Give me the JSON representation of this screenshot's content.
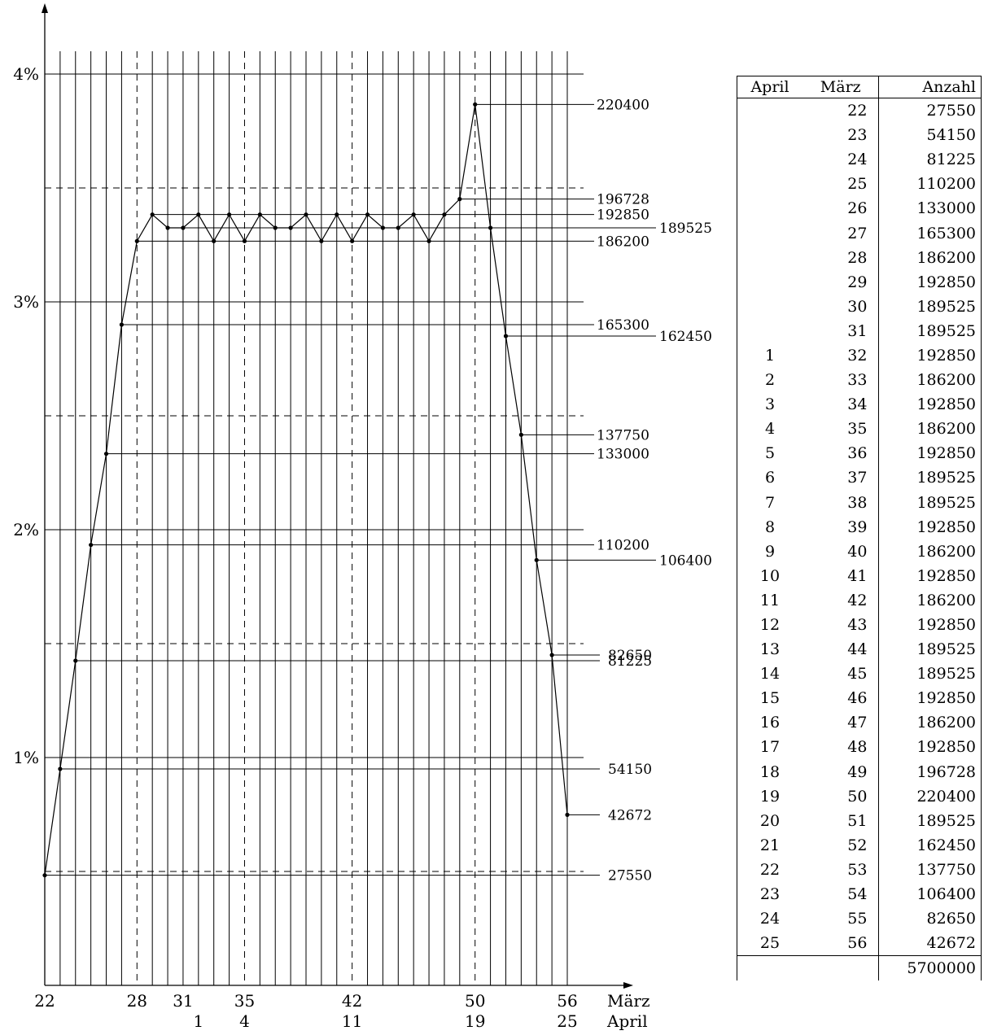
{
  "chart_data": {
    "type": "line",
    "y_axis": {
      "ticks": [
        {
          "value": 1,
          "label": "1%"
        },
        {
          "value": 2,
          "label": "2%"
        },
        {
          "value": 3,
          "label": "3%"
        },
        {
          "value": 4,
          "label": "4%"
        }
      ],
      "ylim": [
        0,
        4.1
      ],
      "dashed_gridlines": [
        0.5,
        1.5,
        2.5,
        3.5
      ]
    },
    "x_axis": {
      "xlim": [
        22,
        56
      ],
      "maerz_label": "März",
      "april_label": "April",
      "maerz_ticks": [
        {
          "value": 22,
          "label": "22"
        },
        {
          "value": 28,
          "label": "28"
        },
        {
          "value": 31,
          "label": "31"
        },
        {
          "value": 35,
          "label": "35"
        },
        {
          "value": 42,
          "label": "42"
        },
        {
          "value": 50,
          "label": "50"
        },
        {
          "value": 56,
          "label": "56"
        }
      ],
      "april_ticks": [
        {
          "value": 32,
          "label": "1"
        },
        {
          "value": 35,
          "label": "4"
        },
        {
          "value": 42,
          "label": "11"
        },
        {
          "value": 50,
          "label": "19"
        },
        {
          "value": 56,
          "label": "25"
        }
      ],
      "dashed_verticals": [
        28,
        35,
        42,
        50
      ]
    },
    "x": [
      22,
      23,
      24,
      25,
      26,
      27,
      28,
      29,
      30,
      31,
      32,
      33,
      34,
      35,
      36,
      37,
      38,
      39,
      40,
      41,
      42,
      43,
      44,
      45,
      46,
      47,
      48,
      49,
      50,
      51,
      52,
      53,
      54,
      55,
      56
    ],
    "values": [
      27550,
      54150,
      81225,
      110200,
      133000,
      165300,
      186200,
      192850,
      189525,
      189525,
      192850,
      186200,
      192850,
      186200,
      192850,
      189525,
      189525,
      192850,
      186200,
      192850,
      186200,
      192850,
      189525,
      189525,
      192850,
      186200,
      192850,
      196728,
      220400,
      189525,
      162450,
      137750,
      106400,
      82650,
      42672
    ],
    "percent_factor": 1.75438e-05,
    "value_labels": [
      {
        "label": "220400",
        "value": 220400,
        "col": 1
      },
      {
        "label": "196728",
        "value": 196728,
        "col": 1
      },
      {
        "label": "192850",
        "value": 192850,
        "col": 1
      },
      {
        "label": "189525",
        "value": 189525,
        "col": 2
      },
      {
        "label": "186200",
        "value": 186200,
        "col": 1
      },
      {
        "label": "165300",
        "value": 165300,
        "col": 1
      },
      {
        "label": "162450",
        "value": 162450,
        "col": 2
      },
      {
        "label": "137750",
        "value": 137750,
        "col": 1
      },
      {
        "label": "133000",
        "value": 133000,
        "col": 1
      },
      {
        "label": "110200",
        "value": 110200,
        "col": 1
      },
      {
        "label": "106400",
        "value": 106400,
        "col": 2
      },
      {
        "label": "82650",
        "value": 82650,
        "col": 3
      },
      {
        "label": "81225",
        "value": 81225,
        "col": 3
      },
      {
        "label": "54150",
        "value": 54150,
        "col": 3
      },
      {
        "label": "42672",
        "value": 42672,
        "col": 3
      },
      {
        "label": "27550",
        "value": 27550,
        "col": 3
      }
    ]
  },
  "table": {
    "headers": {
      "april": "April",
      "maerz": "März",
      "anzahl": "Anzahl"
    },
    "rows": [
      {
        "april": "",
        "maerz": "22",
        "anzahl": "27550"
      },
      {
        "april": "",
        "maerz": "23",
        "anzahl": "54150"
      },
      {
        "april": "",
        "maerz": "24",
        "anzahl": "81225"
      },
      {
        "april": "",
        "maerz": "25",
        "anzahl": "110200"
      },
      {
        "april": "",
        "maerz": "26",
        "anzahl": "133000"
      },
      {
        "april": "",
        "maerz": "27",
        "anzahl": "165300"
      },
      {
        "april": "",
        "maerz": "28",
        "anzahl": "186200"
      },
      {
        "april": "",
        "maerz": "29",
        "anzahl": "192850"
      },
      {
        "april": "",
        "maerz": "30",
        "anzahl": "189525"
      },
      {
        "april": "",
        "maerz": "31",
        "anzahl": "189525"
      },
      {
        "april": "1",
        "maerz": "32",
        "anzahl": "192850"
      },
      {
        "april": "2",
        "maerz": "33",
        "anzahl": "186200"
      },
      {
        "april": "3",
        "maerz": "34",
        "anzahl": "192850"
      },
      {
        "april": "4",
        "maerz": "35",
        "anzahl": "186200"
      },
      {
        "april": "5",
        "maerz": "36",
        "anzahl": "192850"
      },
      {
        "april": "6",
        "maerz": "37",
        "anzahl": "189525"
      },
      {
        "april": "7",
        "maerz": "38",
        "anzahl": "189525"
      },
      {
        "april": "8",
        "maerz": "39",
        "anzahl": "192850"
      },
      {
        "april": "9",
        "maerz": "40",
        "anzahl": "186200"
      },
      {
        "april": "10",
        "maerz": "41",
        "anzahl": "192850"
      },
      {
        "april": "11",
        "maerz": "42",
        "anzahl": "186200"
      },
      {
        "april": "12",
        "maerz": "43",
        "anzahl": "192850"
      },
      {
        "april": "13",
        "maerz": "44",
        "anzahl": "189525"
      },
      {
        "april": "14",
        "maerz": "45",
        "anzahl": "189525"
      },
      {
        "april": "15",
        "maerz": "46",
        "anzahl": "192850"
      },
      {
        "april": "16",
        "maerz": "47",
        "anzahl": "186200"
      },
      {
        "april": "17",
        "maerz": "48",
        "anzahl": "192850"
      },
      {
        "april": "18",
        "maerz": "49",
        "anzahl": "196728"
      },
      {
        "april": "19",
        "maerz": "50",
        "anzahl": "220400"
      },
      {
        "april": "20",
        "maerz": "51",
        "anzahl": "189525"
      },
      {
        "april": "21",
        "maerz": "52",
        "anzahl": "162450"
      },
      {
        "april": "22",
        "maerz": "53",
        "anzahl": "137750"
      },
      {
        "april": "23",
        "maerz": "54",
        "anzahl": "106400"
      },
      {
        "april": "24",
        "maerz": "55",
        "anzahl": "82650"
      },
      {
        "april": "25",
        "maerz": "56",
        "anzahl": "42672"
      }
    ],
    "total": "5700000"
  }
}
